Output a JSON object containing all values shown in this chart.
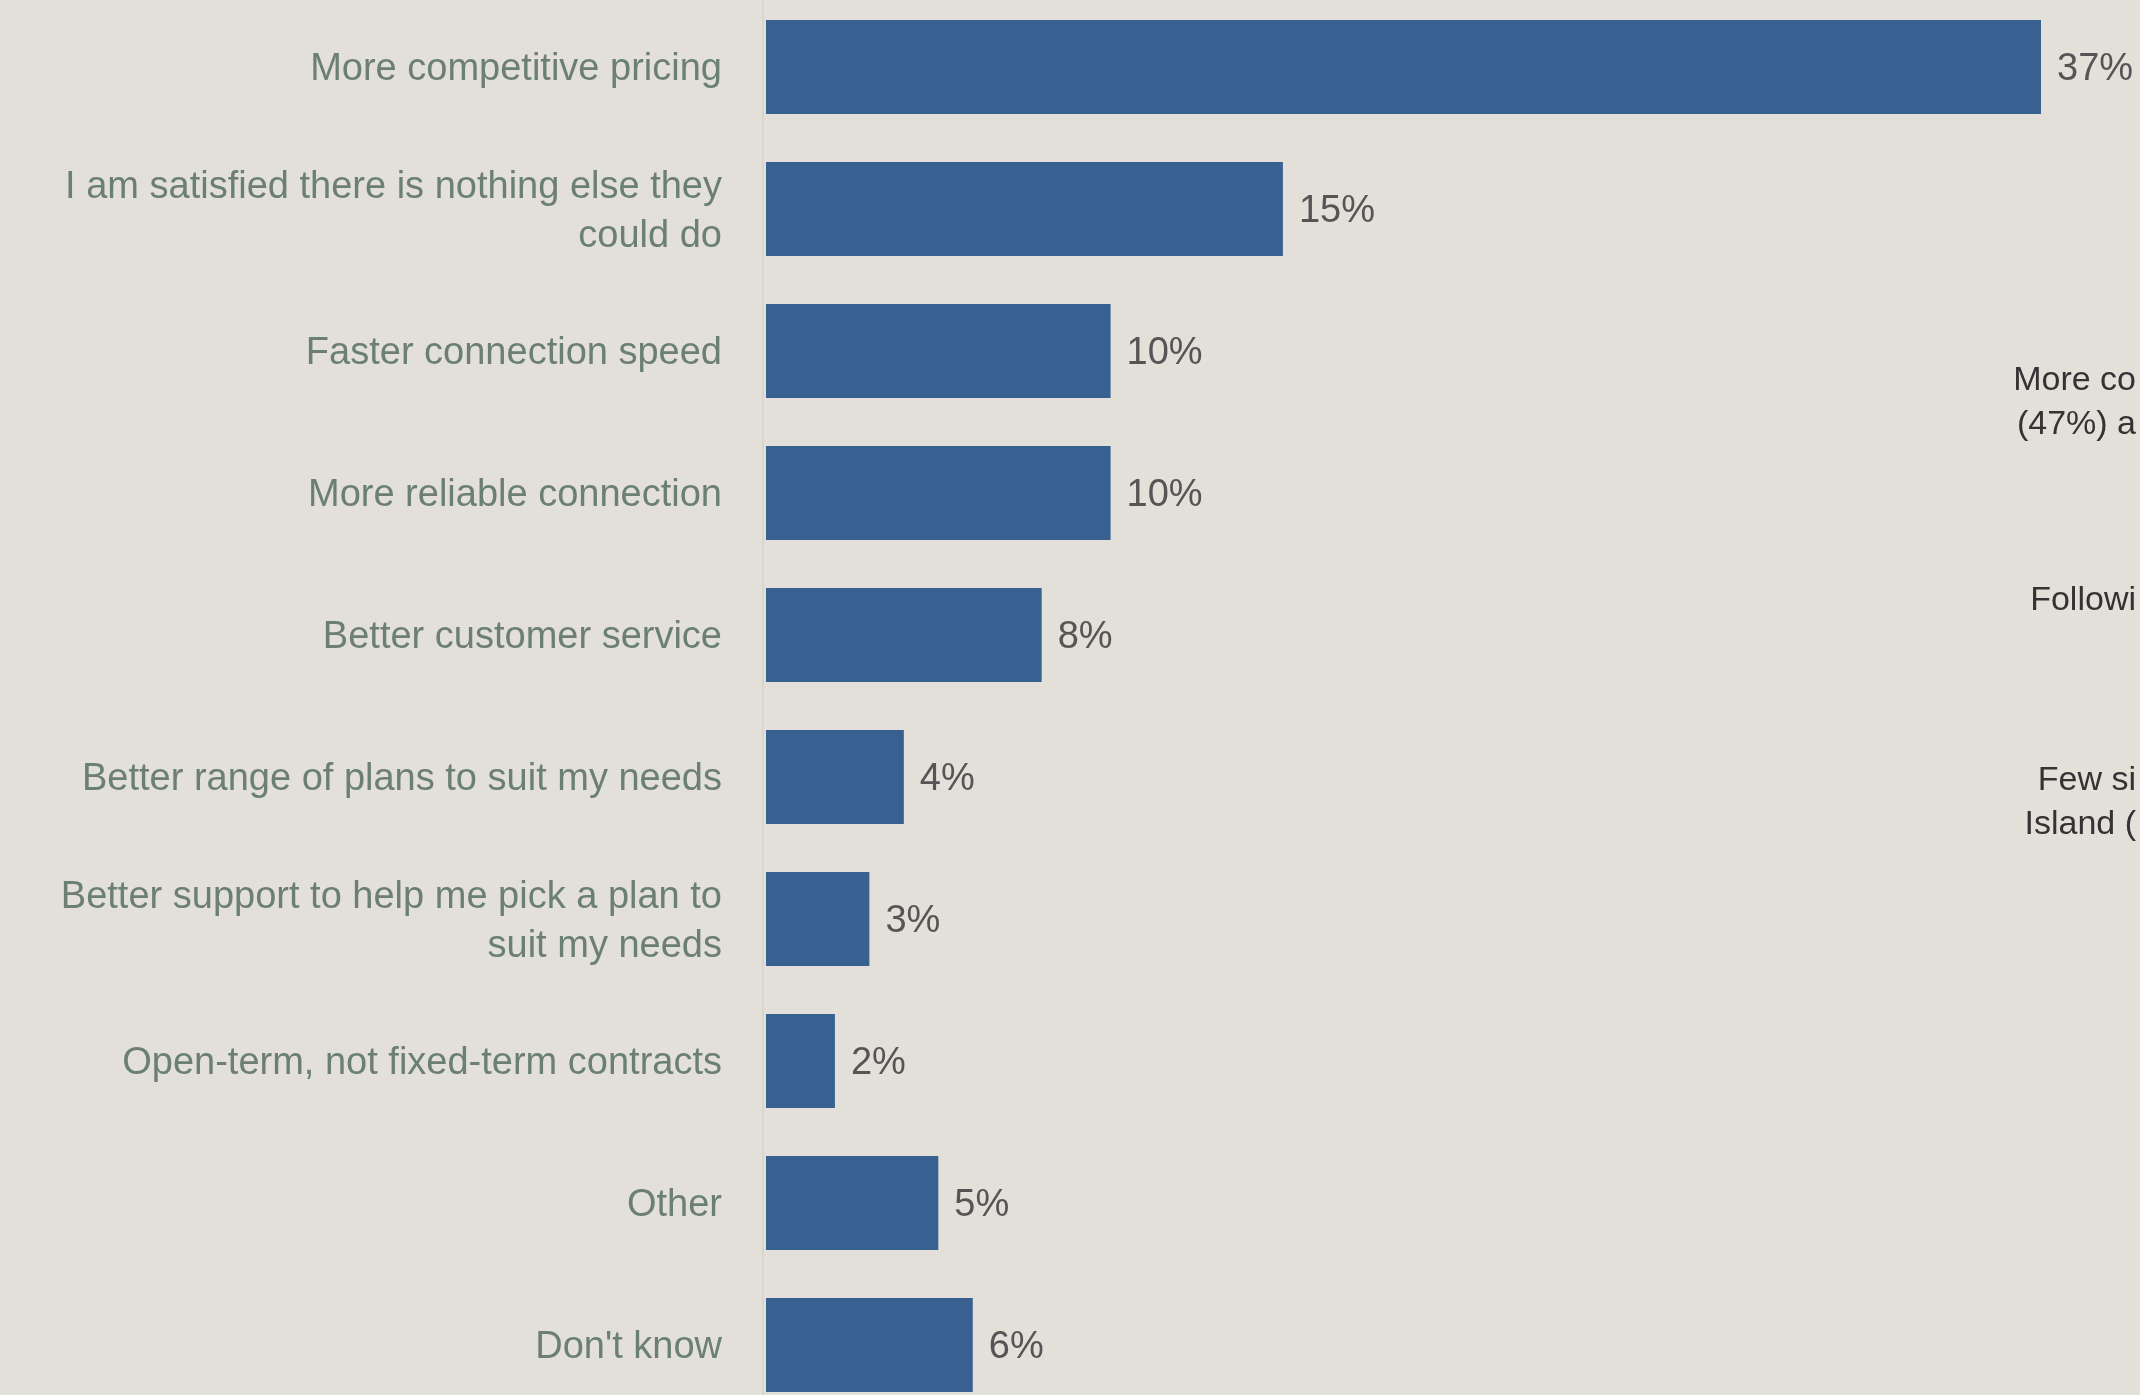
{
  "chart_data": {
    "type": "bar",
    "orientation": "horizontal",
    "categories": [
      "More competitive pricing",
      "I am satisfied there is nothing else they could do",
      "Faster connection speed",
      "More reliable connection",
      "Better customer service",
      "Better range of plans to suit my needs",
      "Better support to help me pick a plan to suit my needs",
      "Open-term, not fixed-term contracts",
      "Other",
      "Don't know"
    ],
    "values": [
      37,
      15,
      10,
      10,
      8,
      4,
      3,
      2,
      5,
      6
    ],
    "value_labels": [
      "37%",
      "15%",
      "10%",
      "10%",
      "8%",
      "4%",
      "3%",
      "2%",
      "5%",
      "6%"
    ],
    "color": "#386192",
    "annotations": [
      "More co\n(47%) a",
      "Followi",
      "Few si\nIsland ("
    ]
  }
}
